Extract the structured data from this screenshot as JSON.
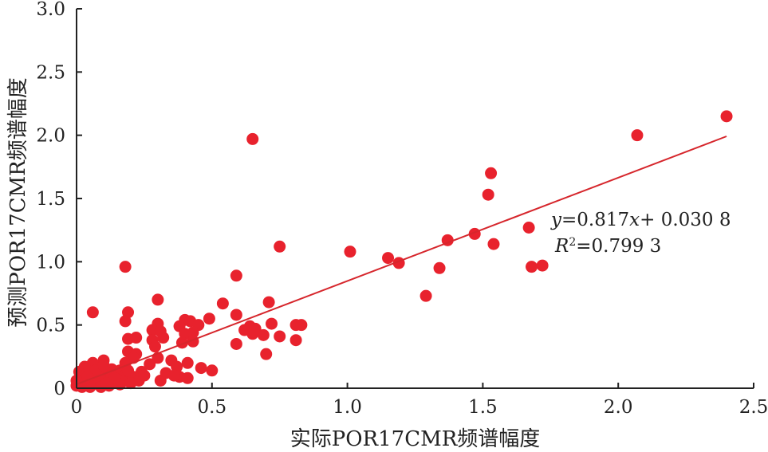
{
  "chart_data": {
    "type": "scatter",
    "xlabel": "实际POR17CMR频谱幅度",
    "ylabel": "预测POR17CMR频谱幅度",
    "xlim": [
      0,
      2.5
    ],
    "ylim": [
      0,
      3.0
    ],
    "x_ticks": [
      0,
      0.5,
      1.0,
      1.5,
      2.0,
      2.5
    ],
    "x_tick_labels": [
      "0",
      "0.5",
      "1.0",
      "1.5",
      "2.0",
      "2.5"
    ],
    "y_ticks": [
      0,
      0.5,
      1.0,
      1.5,
      2.0,
      2.5,
      3.0
    ],
    "y_tick_labels": [
      "0",
      "0.5",
      "1.0",
      "1.5",
      "2.0",
      "2.5",
      "3.0"
    ],
    "grid": false,
    "point_color": "#e8222d",
    "line_color": "#d6262c",
    "fit_line": {
      "slope": 0.817,
      "intercept": 0.0308,
      "x_range": [
        0,
        2.4
      ]
    },
    "annotation": {
      "eq_y": "y",
      "eq_body": "=0.817",
      "eq_x": "x",
      "eq_tail": "+ 0.030 8",
      "r_base": "R",
      "r_sup": "2",
      "r_tail": "=0.799 3"
    },
    "points": [
      {
        "x": 2.4,
        "y": 2.15
      },
      {
        "x": 2.07,
        "y": 2.0
      },
      {
        "x": 0.65,
        "y": 1.97
      },
      {
        "x": 1.53,
        "y": 1.7
      },
      {
        "x": 1.52,
        "y": 1.53
      },
      {
        "x": 1.67,
        "y": 1.27
      },
      {
        "x": 1.47,
        "y": 1.22
      },
      {
        "x": 1.37,
        "y": 1.17
      },
      {
        "x": 1.54,
        "y": 1.14
      },
      {
        "x": 0.75,
        "y": 1.12
      },
      {
        "x": 1.01,
        "y": 1.08
      },
      {
        "x": 1.15,
        "y": 1.03
      },
      {
        "x": 1.19,
        "y": 0.99
      },
      {
        "x": 1.68,
        "y": 0.96
      },
      {
        "x": 1.72,
        "y": 0.97
      },
      {
        "x": 1.34,
        "y": 0.95
      },
      {
        "x": 0.18,
        "y": 0.96
      },
      {
        "x": 0.59,
        "y": 0.89
      },
      {
        "x": 1.29,
        "y": 0.73
      },
      {
        "x": 0.3,
        "y": 0.7
      },
      {
        "x": 0.71,
        "y": 0.68
      },
      {
        "x": 0.54,
        "y": 0.67
      },
      {
        "x": 0.06,
        "y": 0.6
      },
      {
        "x": 0.19,
        "y": 0.6
      },
      {
        "x": 0.59,
        "y": 0.58
      },
      {
        "x": 0.49,
        "y": 0.55
      },
      {
        "x": 0.4,
        "y": 0.54
      },
      {
        "x": 0.42,
        "y": 0.53
      },
      {
        "x": 0.18,
        "y": 0.53
      },
      {
        "x": 0.3,
        "y": 0.51
      },
      {
        "x": 0.38,
        "y": 0.49
      },
      {
        "x": 0.45,
        "y": 0.5
      },
      {
        "x": 0.64,
        "y": 0.49
      },
      {
        "x": 0.66,
        "y": 0.47
      },
      {
        "x": 0.72,
        "y": 0.51
      },
      {
        "x": 0.81,
        "y": 0.5
      },
      {
        "x": 0.83,
        "y": 0.5
      },
      {
        "x": 0.28,
        "y": 0.46
      },
      {
        "x": 0.31,
        "y": 0.45
      },
      {
        "x": 0.62,
        "y": 0.46
      },
      {
        "x": 0.65,
        "y": 0.43
      },
      {
        "x": 0.69,
        "y": 0.42
      },
      {
        "x": 0.75,
        "y": 0.41
      },
      {
        "x": 0.4,
        "y": 0.43
      },
      {
        "x": 0.43,
        "y": 0.44
      },
      {
        "x": 0.19,
        "y": 0.39
      },
      {
        "x": 0.28,
        "y": 0.38
      },
      {
        "x": 0.32,
        "y": 0.4
      },
      {
        "x": 0.22,
        "y": 0.4
      },
      {
        "x": 0.39,
        "y": 0.36
      },
      {
        "x": 0.43,
        "y": 0.37
      },
      {
        "x": 0.81,
        "y": 0.38
      },
      {
        "x": 0.59,
        "y": 0.35
      },
      {
        "x": 0.29,
        "y": 0.33
      },
      {
        "x": 0.19,
        "y": 0.29
      },
      {
        "x": 0.22,
        "y": 0.27
      },
      {
        "x": 0.7,
        "y": 0.27
      },
      {
        "x": 0.21,
        "y": 0.24
      },
      {
        "x": 0.3,
        "y": 0.24
      },
      {
        "x": 0.35,
        "y": 0.22
      },
      {
        "x": 0.41,
        "y": 0.2
      },
      {
        "x": 0.18,
        "y": 0.2
      },
      {
        "x": 0.1,
        "y": 0.22
      },
      {
        "x": 0.06,
        "y": 0.2
      },
      {
        "x": 0.27,
        "y": 0.19
      },
      {
        "x": 0.37,
        "y": 0.17
      },
      {
        "x": 0.46,
        "y": 0.16
      },
      {
        "x": 0.5,
        "y": 0.14
      },
      {
        "x": 0.03,
        "y": 0.17
      },
      {
        "x": 0.08,
        "y": 0.16
      },
      {
        "x": 0.13,
        "y": 0.15
      },
      {
        "x": 0.16,
        "y": 0.14
      },
      {
        "x": 0.24,
        "y": 0.13
      },
      {
        "x": 0.01,
        "y": 0.13
      },
      {
        "x": 0.04,
        "y": 0.12
      },
      {
        "x": 0.07,
        "y": 0.11
      },
      {
        "x": 0.11,
        "y": 0.12
      },
      {
        "x": 0.15,
        "y": 0.11
      },
      {
        "x": 0.18,
        "y": 0.1
      },
      {
        "x": 0.21,
        "y": 0.09
      },
      {
        "x": 0.38,
        "y": 0.09
      },
      {
        "x": 0.41,
        "y": 0.08
      },
      {
        "x": 0.02,
        "y": 0.08
      },
      {
        "x": 0.05,
        "y": 0.07
      },
      {
        "x": 0.09,
        "y": 0.08
      },
      {
        "x": 0.12,
        "y": 0.07
      },
      {
        "x": 0.15,
        "y": 0.07
      },
      {
        "x": 0.23,
        "y": 0.06
      },
      {
        "x": 0.31,
        "y": 0.06
      },
      {
        "x": 0.03,
        "y": 0.05
      },
      {
        "x": 0.06,
        "y": 0.04
      },
      {
        "x": 0.1,
        "y": 0.05
      },
      {
        "x": 0.14,
        "y": 0.04
      },
      {
        "x": 0.17,
        "y": 0.05
      },
      {
        "x": 0.01,
        "y": 0.03
      },
      {
        "x": 0.04,
        "y": 0.02
      },
      {
        "x": 0.08,
        "y": 0.03
      },
      {
        "x": 0.12,
        "y": 0.02
      },
      {
        "x": 0.02,
        "y": 0.01
      },
      {
        "x": 0.05,
        "y": 0.01
      },
      {
        "x": 0.09,
        "y": 0.01
      },
      {
        "x": 0.16,
        "y": 0.03
      },
      {
        "x": 0.2,
        "y": 0.04
      },
      {
        "x": 0.13,
        "y": 0.1
      },
      {
        "x": 0.07,
        "y": 0.14
      },
      {
        "x": 0.1,
        "y": 0.18
      },
      {
        "x": 0.14,
        "y": 0.08
      },
      {
        "x": 0.04,
        "y": 0.09
      },
      {
        "x": 0.0,
        "y": 0.06
      },
      {
        "x": 0.0,
        "y": 0.02
      },
      {
        "x": 0.11,
        "y": 0.04
      },
      {
        "x": 0.19,
        "y": 0.14
      },
      {
        "x": 0.25,
        "y": 0.1
      },
      {
        "x": 0.33,
        "y": 0.12
      },
      {
        "x": 0.36,
        "y": 0.1
      }
    ]
  }
}
